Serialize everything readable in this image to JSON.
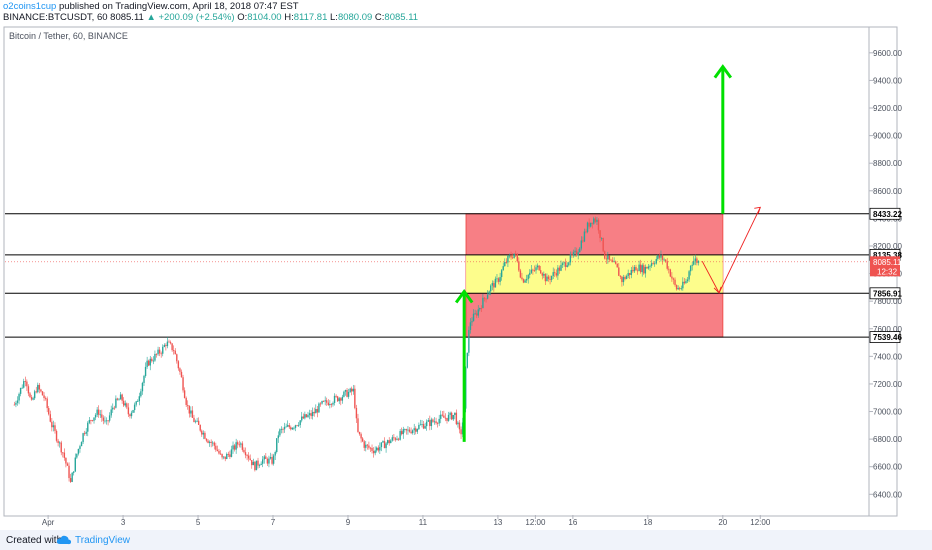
{
  "header": {
    "author": "o2coins1cup",
    "published": "published on TradingView.com, April 18, 2018 07:47 EST",
    "symbol": "BINANCE:BTCUSDT, 60",
    "last": "8085.11",
    "change_arrow": "▲",
    "change": "+200.09 (+2.54%)",
    "o_label": "O:",
    "o_value": "8104.00",
    "h_label": "H:",
    "h_value": "8117.81",
    "l_label": "L:",
    "l_value": "8080.09",
    "c_label": "C:",
    "c_value": "8085.11"
  },
  "footer": {
    "created_with": "Created with",
    "brand": "TradingView"
  },
  "colors": {
    "bull": "#26a69a",
    "bear": "#ef5350",
    "arrow_green": "#00e000",
    "box_red": "#f77f85",
    "box_yellow": "#fdfd8c",
    "line_black": "#000000",
    "arrow_red": "#ef2020"
  },
  "chart_data": {
    "type": "candlestick",
    "title": "Bitcoin / Tether, 60, BINANCE",
    "ylim": [
      6250,
      9780
    ],
    "x_range_days": [
      -0.25,
      22.8
    ],
    "y_ticks": [
      "6400.00",
      "6600.00",
      "6800.00",
      "7000.00",
      "7200.00",
      "7400.00",
      "7600.00",
      "7800.00",
      "8000.00",
      "8200.00",
      "8400.00",
      "8600.00",
      "8800.00",
      "9000.00",
      "9200.00",
      "9400.00",
      "9600.00"
    ],
    "x_ticks": [
      {
        "label": "Apr",
        "day": 0.9
      },
      {
        "label": "3",
        "day": 2.9
      },
      {
        "label": "5",
        "day": 4.9
      },
      {
        "label": "7",
        "day": 6.9
      },
      {
        "label": "9",
        "day": 8.9
      },
      {
        "label": "11",
        "day": 10.9
      },
      {
        "label": "13",
        "day": 12.9
      },
      {
        "label": "12:00",
        "day": 13.9
      },
      {
        "label": "16",
        "day": 14.9
      },
      {
        "label": "18",
        "day": 16.9
      },
      {
        "label": "20",
        "day": 18.9
      },
      {
        "label": "12:00",
        "day": 19.9
      }
    ],
    "price_path": [
      [
        0.0,
        7050
      ],
      [
        0.15,
        7150
      ],
      [
        0.3,
        7250
      ],
      [
        0.45,
        7050
      ],
      [
        0.6,
        7180
      ],
      [
        0.8,
        7100
      ],
      [
        1.0,
        6900
      ],
      [
        1.15,
        6800
      ],
      [
        1.3,
        6700
      ],
      [
        1.45,
        6550
      ],
      [
        1.5,
        6480
      ],
      [
        1.65,
        6680
      ],
      [
        1.85,
        6850
      ],
      [
        2.05,
        6950
      ],
      [
        2.25,
        7000
      ],
      [
        2.45,
        6900
      ],
      [
        2.65,
        7050
      ],
      [
        2.85,
        7100
      ],
      [
        3.05,
        6980
      ],
      [
        3.25,
        7050
      ],
      [
        3.4,
        7200
      ],
      [
        3.55,
        7350
      ],
      [
        3.75,
        7400
      ],
      [
        3.95,
        7450
      ],
      [
        4.05,
        7500
      ],
      [
        4.25,
        7450
      ],
      [
        4.45,
        7250
      ],
      [
        4.6,
        7050
      ],
      [
        4.75,
        6950
      ],
      [
        4.95,
        6880
      ],
      [
        5.15,
        6800
      ],
      [
        5.35,
        6750
      ],
      [
        5.55,
        6650
      ],
      [
        5.75,
        6700
      ],
      [
        6.0,
        6780
      ],
      [
        6.2,
        6700
      ],
      [
        6.4,
        6600
      ],
      [
        6.6,
        6650
      ],
      [
        6.9,
        6640
      ],
      [
        7.05,
        6850
      ],
      [
        7.25,
        6880
      ],
      [
        7.45,
        6900
      ],
      [
        7.7,
        6950
      ],
      [
        7.95,
        6980
      ],
      [
        8.2,
        7050
      ],
      [
        8.45,
        7080
      ],
      [
        8.65,
        7100
      ],
      [
        8.85,
        7130
      ],
      [
        9.05,
        7150
      ],
      [
        9.15,
        6850
      ],
      [
        9.35,
        6750
      ],
      [
        9.6,
        6720
      ],
      [
        9.85,
        6760
      ],
      [
        10.1,
        6800
      ],
      [
        10.35,
        6840
      ],
      [
        10.6,
        6870
      ],
      [
        10.85,
        6900
      ],
      [
        11.1,
        6920
      ],
      [
        11.35,
        6950
      ],
      [
        11.6,
        6960
      ],
      [
        11.75,
        6980
      ],
      [
        11.9,
        6820
      ],
      [
        12.0,
        7000
      ],
      [
        12.05,
        7350
      ],
      [
        12.15,
        7650
      ],
      [
        12.3,
        7700
      ],
      [
        12.5,
        7800
      ],
      [
        12.7,
        7900
      ],
      [
        12.9,
        7950
      ],
      [
        13.05,
        8050
      ],
      [
        13.15,
        8100
      ],
      [
        13.35,
        8150
      ],
      [
        13.55,
        7950
      ],
      [
        13.75,
        8000
      ],
      [
        14.0,
        8050
      ],
      [
        14.2,
        7950
      ],
      [
        14.4,
        8000
      ],
      [
        14.6,
        8050
      ],
      [
        14.8,
        8100
      ],
      [
        15.0,
        8150
      ],
      [
        15.15,
        8250
      ],
      [
        15.3,
        8350
      ],
      [
        15.45,
        8400
      ],
      [
        15.55,
        8380
      ],
      [
        15.65,
        8250
      ],
      [
        15.75,
        8130
      ],
      [
        15.9,
        8080
      ],
      [
        16.05,
        8050
      ],
      [
        16.2,
        7950
      ],
      [
        16.4,
        8000
      ],
      [
        16.6,
        8050
      ],
      [
        16.8,
        8030
      ],
      [
        17.0,
        8080
      ],
      [
        17.2,
        8120
      ],
      [
        17.35,
        8100
      ],
      [
        17.5,
        8000
      ],
      [
        17.65,
        7890
      ],
      [
        17.8,
        7900
      ],
      [
        17.95,
        7950
      ],
      [
        18.05,
        8080
      ],
      [
        18.15,
        8100
      ],
      [
        18.25,
        8085
      ]
    ],
    "price_lines": [
      {
        "label": "8433.22",
        "value": 8433.22
      },
      {
        "label": "8135.38",
        "value": 8135.38
      },
      {
        "label": "7856.91",
        "value": 7856.91
      },
      {
        "label": "7539.46",
        "value": 7539.46
      }
    ],
    "last_price": {
      "label": "8085.11",
      "value": 8085.11
    },
    "countdown": {
      "label": "12:32"
    },
    "red_box": {
      "x0": 12.05,
      "x1": 18.9,
      "y0": 7539.46,
      "y1": 8433.22
    },
    "yellow_box": {
      "x0": 12.05,
      "x1": 18.9,
      "y0": 7856.91,
      "y1": 8135.38
    },
    "green_arrows": [
      {
        "from": [
          12.0,
          6780
        ],
        "to": [
          12.0,
          7870
        ]
      },
      {
        "from": [
          18.9,
          8433.22
        ],
        "to": [
          18.9,
          9500
        ]
      }
    ],
    "red_path": [
      [
        18.35,
        8090
      ],
      [
        18.8,
        7860
      ],
      [
        19.9,
        8480
      ]
    ]
  }
}
